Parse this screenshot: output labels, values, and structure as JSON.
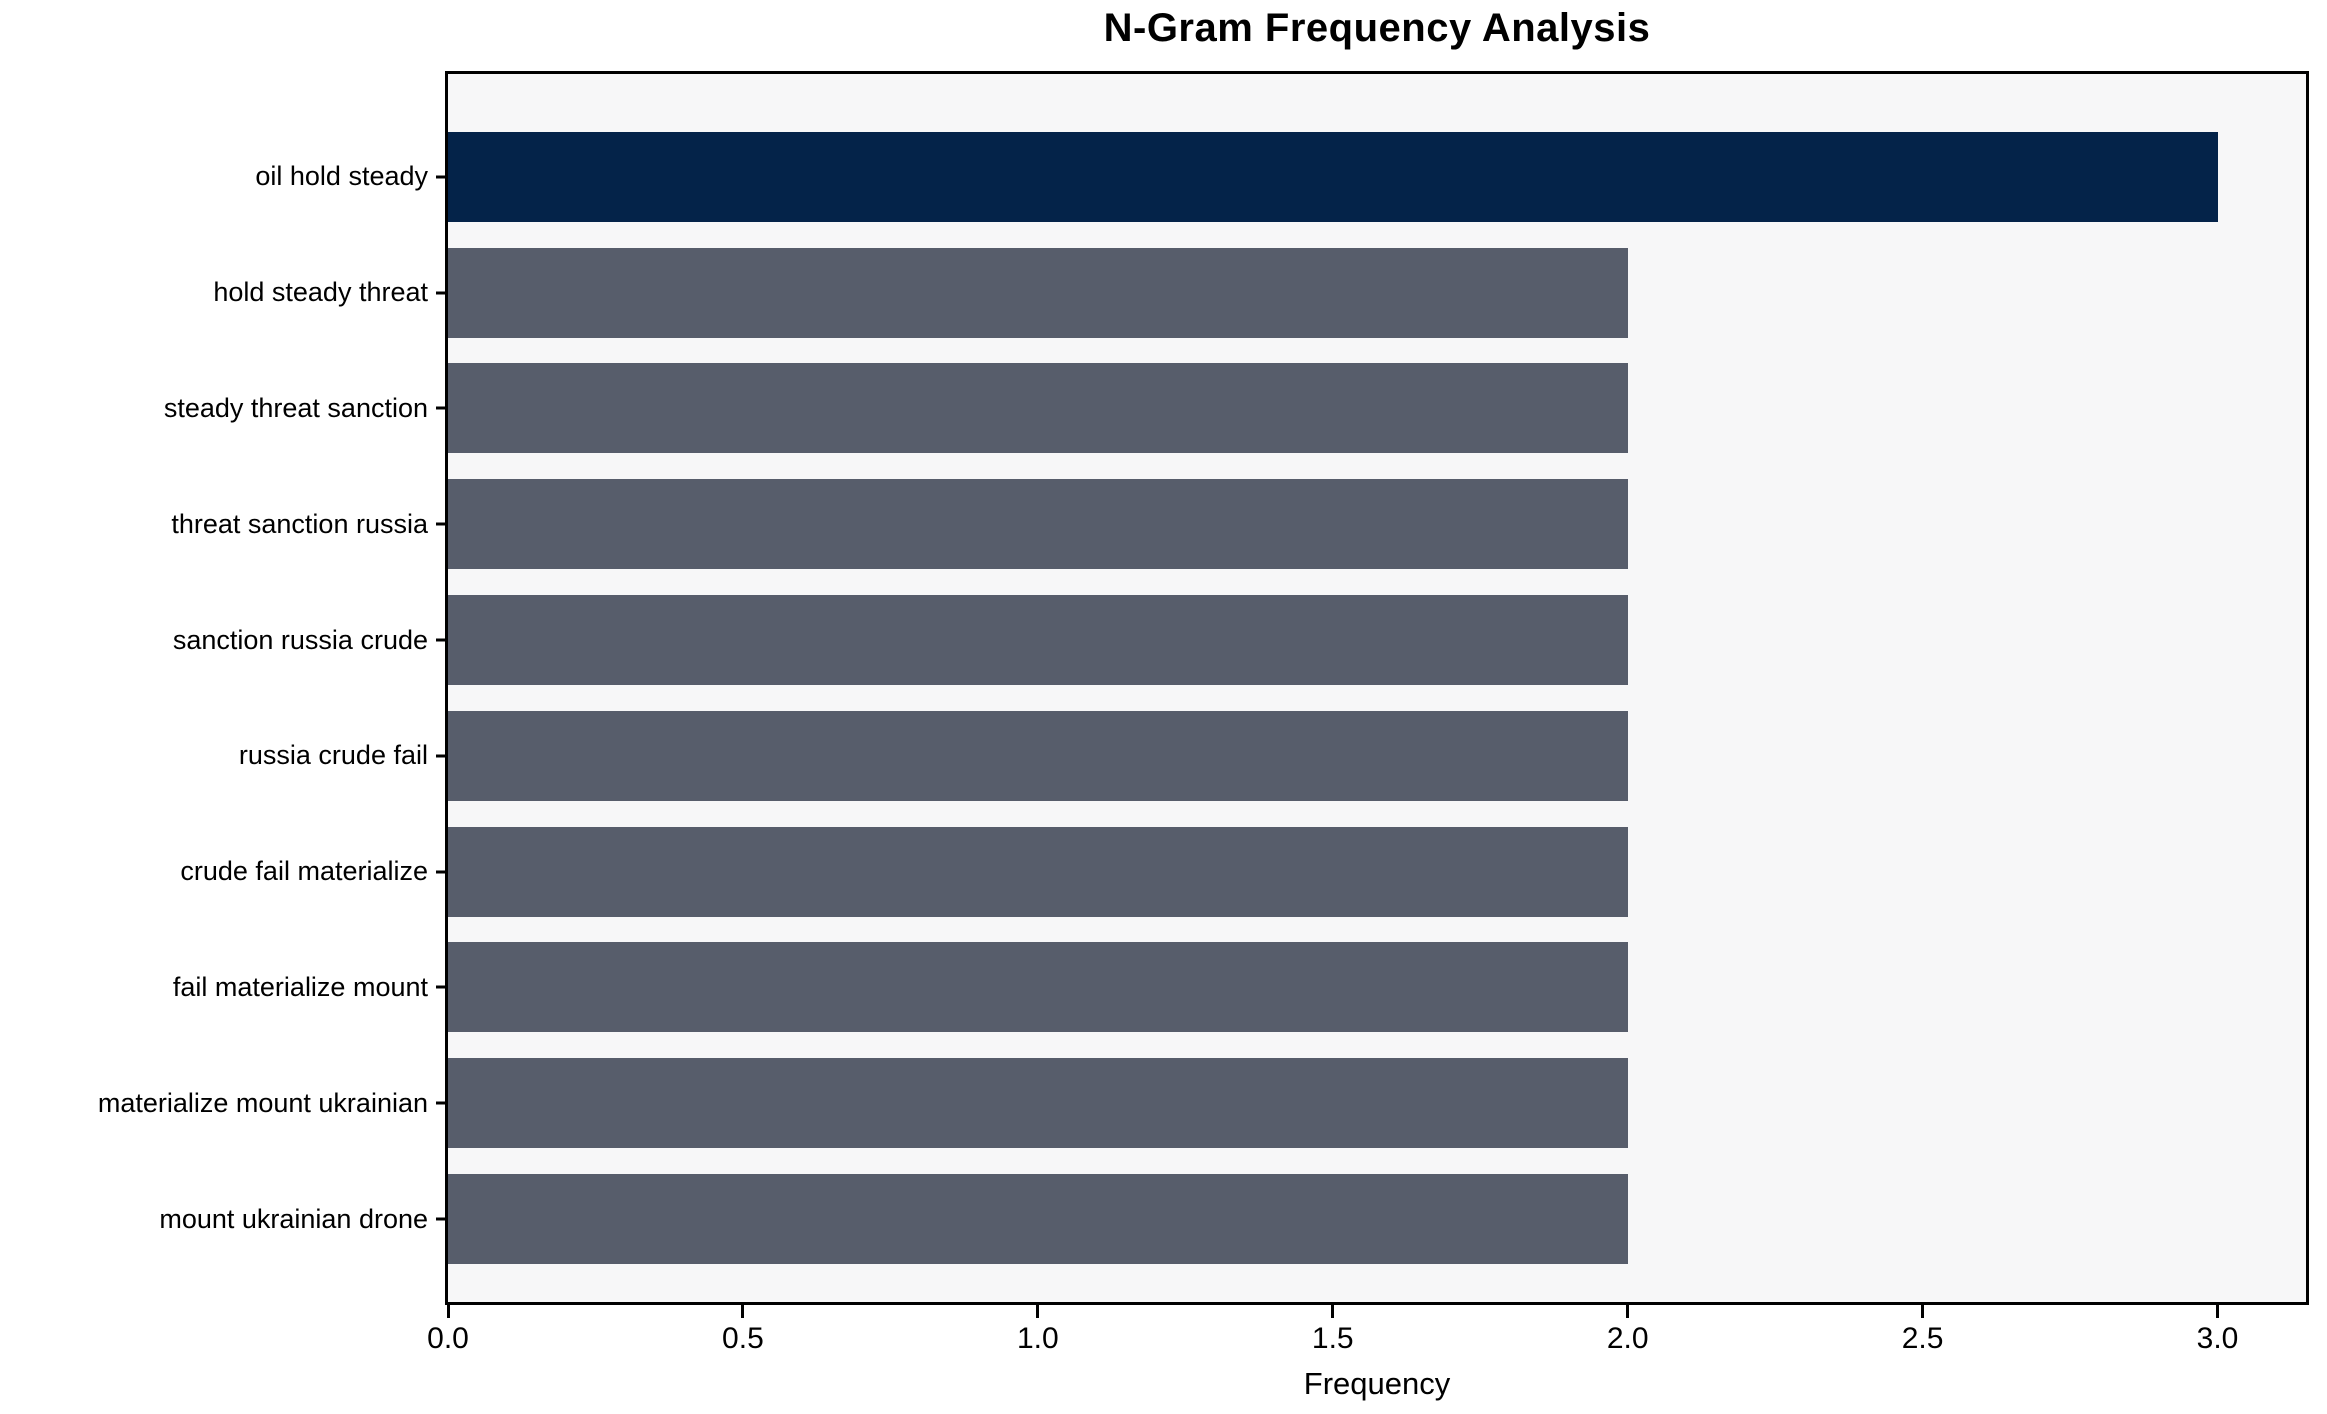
{
  "chart_data": {
    "type": "bar",
    "orientation": "horizontal",
    "title": "N-Gram Frequency Analysis",
    "xlabel": "Frequency",
    "ylabel": "",
    "categories": [
      "oil hold steady",
      "hold steady threat",
      "steady threat sanction",
      "threat sanction russia",
      "sanction russia crude",
      "russia crude fail",
      "crude fail materialize",
      "fail materialize mount",
      "materialize mount ukrainian",
      "mount ukrainian drone"
    ],
    "values": [
      3,
      2,
      2,
      2,
      2,
      2,
      2,
      2,
      2,
      2
    ],
    "xlim": [
      0,
      3.15
    ],
    "xticks": [
      0.0,
      0.5,
      1.0,
      1.5,
      2.0,
      2.5,
      3.0
    ],
    "xtick_labels": [
      "0.0",
      "0.5",
      "1.0",
      "1.5",
      "2.0",
      "2.5",
      "3.0"
    ],
    "grid": false,
    "legend": "none",
    "colors": {
      "highlight_bar": "#042349",
      "default_bar": "#575d6b",
      "plot_background": "#f7f7f8",
      "figure_background": "#ffffff",
      "spine": "#000000",
      "text": "#000000"
    }
  }
}
